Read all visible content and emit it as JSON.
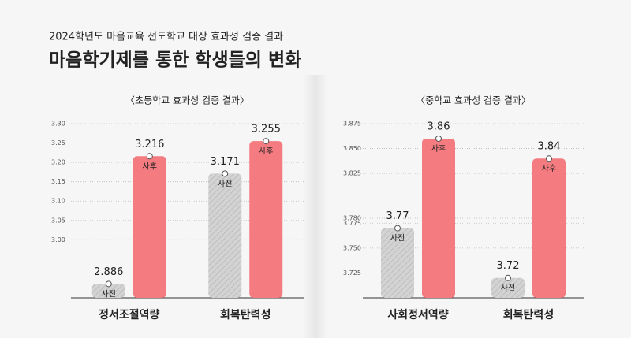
{
  "header": {
    "subtitle": "2024학년도 마음교육 선도학교 대상 효과성 검증 결과",
    "title": "마음학기제를 통한 학생들의 변화"
  },
  "chart_data": [
    {
      "type": "bar",
      "title": "〈초등학교 효과성 검증 결과〉",
      "categories": [
        "정서조절역량",
        "회복탄력성"
      ],
      "series": [
        {
          "name": "사전",
          "color": "#cfcfcf",
          "values": [
            2.886,
            3.171
          ]
        },
        {
          "name": "사후",
          "color": "#f47b80",
          "values": [
            3.216,
            3.255
          ]
        }
      ],
      "ylim": [
        2.85,
        3.3
      ],
      "yticks": [
        {
          "value": 3,
          "label": "3.00"
        },
        3.05,
        {
          "value": 3.1,
          "label": "3.10"
        },
        3.15,
        {
          "value": 3.2,
          "label": "3.20"
        },
        3.25,
        {
          "value": 3.3,
          "label": "3.30"
        }
      ],
      "grid": true
    },
    {
      "type": "bar",
      "title": "〈중학교 효과성 검증 결과〉",
      "categories": [
        "사회정서역량",
        "회복탄력성"
      ],
      "series": [
        {
          "name": "사전",
          "color": "#cfcfcf",
          "values": [
            3.77,
            3.72
          ]
        },
        {
          "name": "사후",
          "color": "#f47b80",
          "values": [
            3.86,
            3.84
          ]
        }
      ],
      "ylim": [
        3.7,
        3.875
      ],
      "yticks": [
        3.725,
        {
          "value": 3.75,
          "label": "3.750"
        },
        3.775,
        {
          "value": 3.78,
          "label": "3.780"
        },
        3.825,
        {
          "value": 3.85,
          "label": "3.850"
        },
        3.875
      ],
      "grid": true
    }
  ]
}
